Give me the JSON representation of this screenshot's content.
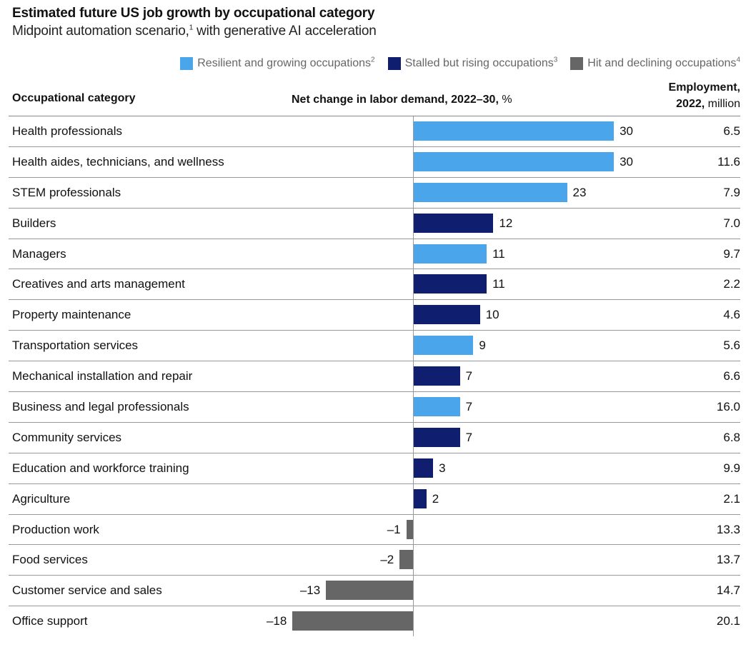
{
  "chart_data": {
    "type": "bar",
    "orientation": "horizontal",
    "title": "Estimated future US job growth by occupational category",
    "subtitle": "Midpoint automation scenario,",
    "subtitle_sup": "1",
    "subtitle_rest": " with generative AI acceleration",
    "xlabel": "Net change in labor demand, 2022–30,",
    "xlabel_unit": " %",
    "xlim": [
      -18,
      30
    ],
    "grid": false,
    "legend_position": "top-right",
    "legend": [
      {
        "key": "resilient",
        "label": "Resilient and growing occupations",
        "sup": "2",
        "color": "#4ba5eb"
      },
      {
        "key": "stalled",
        "label": "Stalled but rising occupations",
        "sup": "3",
        "color": "#0f1e6e"
      },
      {
        "key": "hit",
        "label": "Hit and declining occupations",
        "sup": "4",
        "color": "#666666"
      }
    ],
    "columns": {
      "category": "Occupational category",
      "employment_line1": "Employment,",
      "employment_bold": "2022,",
      "employment_unit": " million"
    },
    "categories": [
      "Health professionals",
      "Health aides, technicians, and wellness",
      "STEM professionals",
      "Builders",
      "Managers",
      "Creatives and arts management",
      "Property maintenance",
      "Transportation services",
      "Mechanical installation and repair",
      "Business and legal professionals",
      "Community services",
      "Education and workforce training",
      "Agriculture",
      "Production work",
      "Food services",
      "Customer service and sales",
      "Office support"
    ],
    "values": [
      30,
      30,
      23,
      12,
      11,
      11,
      10,
      9,
      7,
      7,
      7,
      3,
      2,
      -1,
      -2,
      -13,
      -18
    ],
    "value_labels": [
      "30",
      "30",
      "23",
      "12",
      "11",
      "11",
      "10",
      "9",
      "7",
      "7",
      "7",
      "3",
      "2",
      "–1",
      "–2",
      "–13",
      "–18"
    ],
    "groups": [
      "resilient",
      "resilient",
      "resilient",
      "stalled",
      "resilient",
      "stalled",
      "stalled",
      "resilient",
      "stalled",
      "resilient",
      "stalled",
      "stalled",
      "stalled",
      "hit",
      "hit",
      "hit",
      "hit"
    ],
    "employment_2022_million": [
      "6.5",
      "11.6",
      "7.9",
      "7.0",
      "9.7",
      "2.2",
      "4.6",
      "5.6",
      "6.6",
      "16.0",
      "6.8",
      "9.9",
      "2.1",
      "13.3",
      "13.7",
      "14.7",
      "20.1"
    ]
  }
}
